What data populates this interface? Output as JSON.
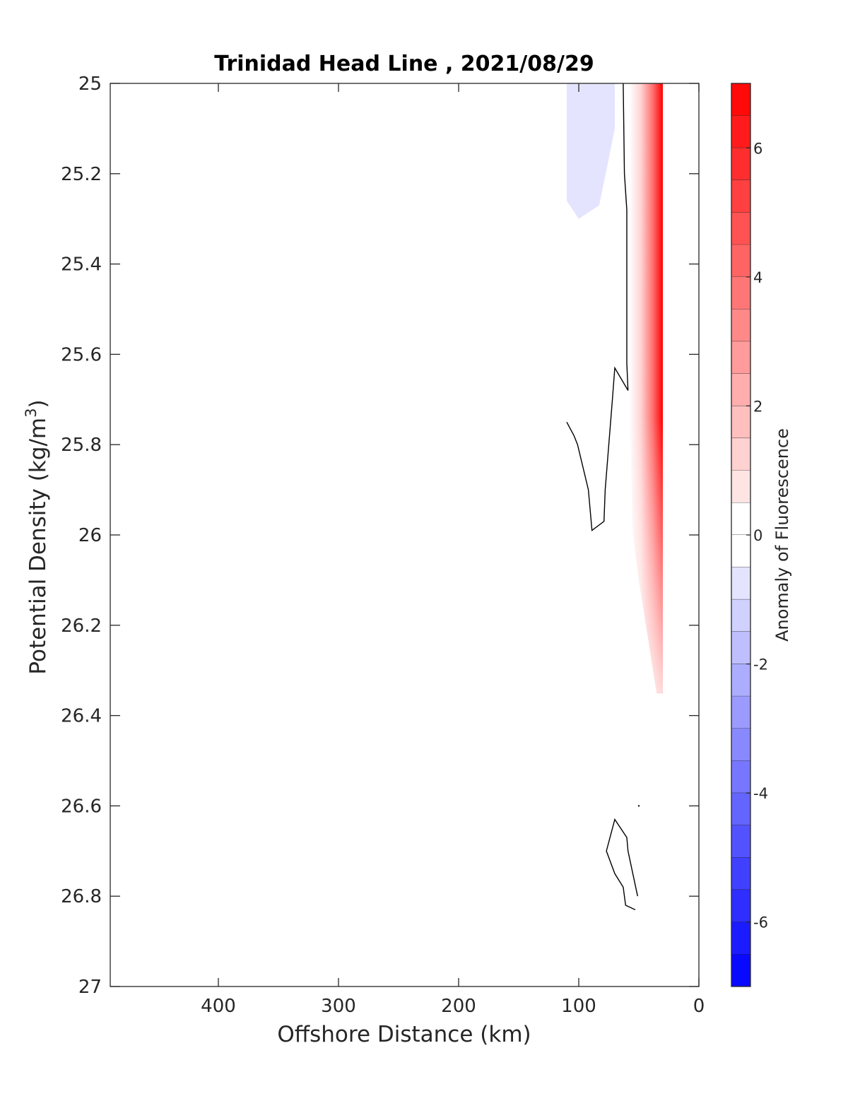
{
  "chart_data": {
    "type": "contour",
    "title": "Trinidad Head Line , 2021/08/29",
    "xlabel": "Offshore Distance (km)",
    "ylabel_main": "Potential Density (kg/m",
    "ylabel_sup": "3",
    "ylabel_close": ")",
    "colorbar_label": "Anomaly of Fluorescence",
    "x_reversed": true,
    "xlim": [
      490,
      0
    ],
    "x_ticks": [
      400,
      300,
      200,
      100,
      0
    ],
    "x_tick_labels": [
      "400",
      "300",
      "200",
      "100",
      "0"
    ],
    "y_reversed": true,
    "ylim": [
      25,
      27
    ],
    "y_ticks": [
      25,
      25.2,
      25.4,
      25.6,
      25.8,
      26,
      26.2,
      26.4,
      26.6,
      26.8,
      27
    ],
    "y_tick_labels": [
      "25",
      "25.2",
      "25.4",
      "25.6",
      "25.8",
      "26",
      "26.2",
      "26.4",
      "26.6",
      "26.8",
      "27"
    ],
    "colorbar_range": [
      -7,
      7
    ],
    "colorbar_levels_step": 0.5,
    "colorbar_ticks": [
      6,
      4,
      2,
      0,
      -2,
      -4,
      -6
    ],
    "colorbar_tick_labels": [
      "6",
      "4",
      "2",
      "0",
      "-2",
      "-4",
      "-6"
    ],
    "colormap": {
      "negative": "#0000ff",
      "zero": "#ffffff",
      "positive": "#ff0000"
    },
    "positive_region": {
      "description_level_max": 7,
      "boundary": [
        [
          58,
          25.0
        ],
        [
          58,
          25.7
        ],
        [
          55,
          26.0
        ],
        [
          50,
          26.1
        ],
        [
          35,
          26.35
        ],
        [
          30,
          26.35
        ],
        [
          30,
          25.0
        ]
      ]
    },
    "negative_region": {
      "level": -1,
      "boundary": [
        [
          110,
          25.0
        ],
        [
          70,
          25.0
        ],
        [
          70,
          25.1
        ],
        [
          76,
          25.18
        ],
        [
          83,
          25.27
        ],
        [
          100,
          25.3
        ],
        [
          110,
          25.26
        ]
      ]
    },
    "zero_contours": [
      [
        [
          63,
          25.0
        ],
        [
          62,
          25.2
        ],
        [
          60,
          25.28
        ],
        [
          60,
          25.4
        ],
        [
          60,
          25.5
        ],
        [
          60,
          25.62
        ],
        [
          59,
          25.68
        ],
        [
          70,
          25.63
        ],
        [
          72,
          25.7
        ],
        [
          78,
          25.9
        ],
        [
          79,
          25.97
        ],
        [
          89,
          25.99
        ],
        [
          92,
          25.9
        ],
        [
          101,
          25.8
        ],
        [
          104,
          25.78
        ],
        [
          110,
          25.75
        ]
      ],
      [
        [
          53,
          26.83
        ],
        [
          61,
          26.82
        ],
        [
          63,
          26.78
        ],
        [
          70,
          26.75
        ],
        [
          77,
          26.7
        ],
        [
          70,
          26.63
        ],
        [
          60,
          26.67
        ],
        [
          59,
          26.7
        ],
        [
          55,
          26.75
        ],
        [
          51,
          26.8
        ]
      ]
    ]
  }
}
